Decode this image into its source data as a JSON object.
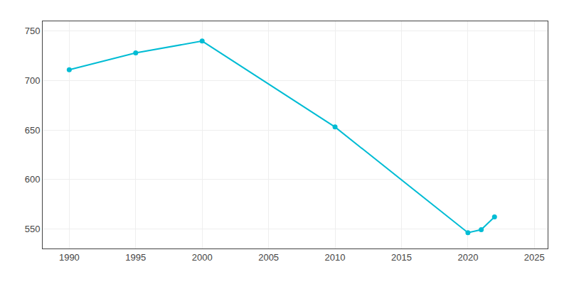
{
  "chart_data": {
    "type": "line",
    "x": [
      1990,
      1995,
      2000,
      2010,
      2020,
      2021,
      2022
    ],
    "values": [
      711,
      728,
      740,
      653,
      546,
      549,
      562
    ],
    "color": "#00bcd4",
    "marker": "circle",
    "xlim": [
      1988,
      2026
    ],
    "ylim": [
      530,
      760
    ],
    "xticks": [
      1990,
      1995,
      2000,
      2005,
      2010,
      2015,
      2020,
      2025
    ],
    "yticks": [
      550,
      600,
      650,
      700,
      750
    ],
    "grid": true
  }
}
